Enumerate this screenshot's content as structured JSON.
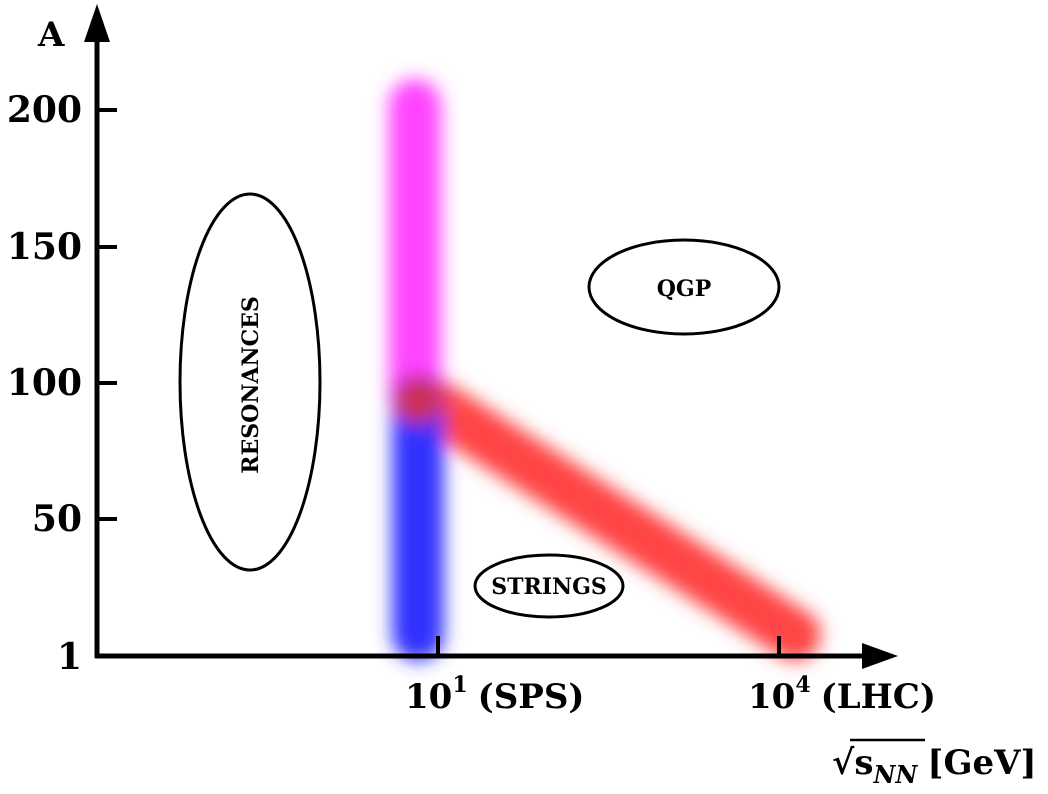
{
  "axes": {
    "y_label": "A",
    "x_label_root": "√s",
    "x_label_sub": "NN",
    "x_label_unit": "[GeV]",
    "y_ticks": [
      "1",
      "50",
      "100",
      "150",
      "200"
    ],
    "x_ticks": [
      {
        "base": "10",
        "exp": "1",
        "name": "(SPS)"
      },
      {
        "base": "10",
        "exp": "4",
        "name": "(LHC)"
      }
    ]
  },
  "regions": {
    "resonances": "RESONANCES",
    "qgp": "QGP",
    "strings": "STRINGS"
  },
  "colors": {
    "axis": "#000000",
    "vertical_upper": "#ff44ff",
    "vertical_lower": "#3333ff",
    "diagonal": "#ff4444",
    "junction": "#cc3355"
  }
}
